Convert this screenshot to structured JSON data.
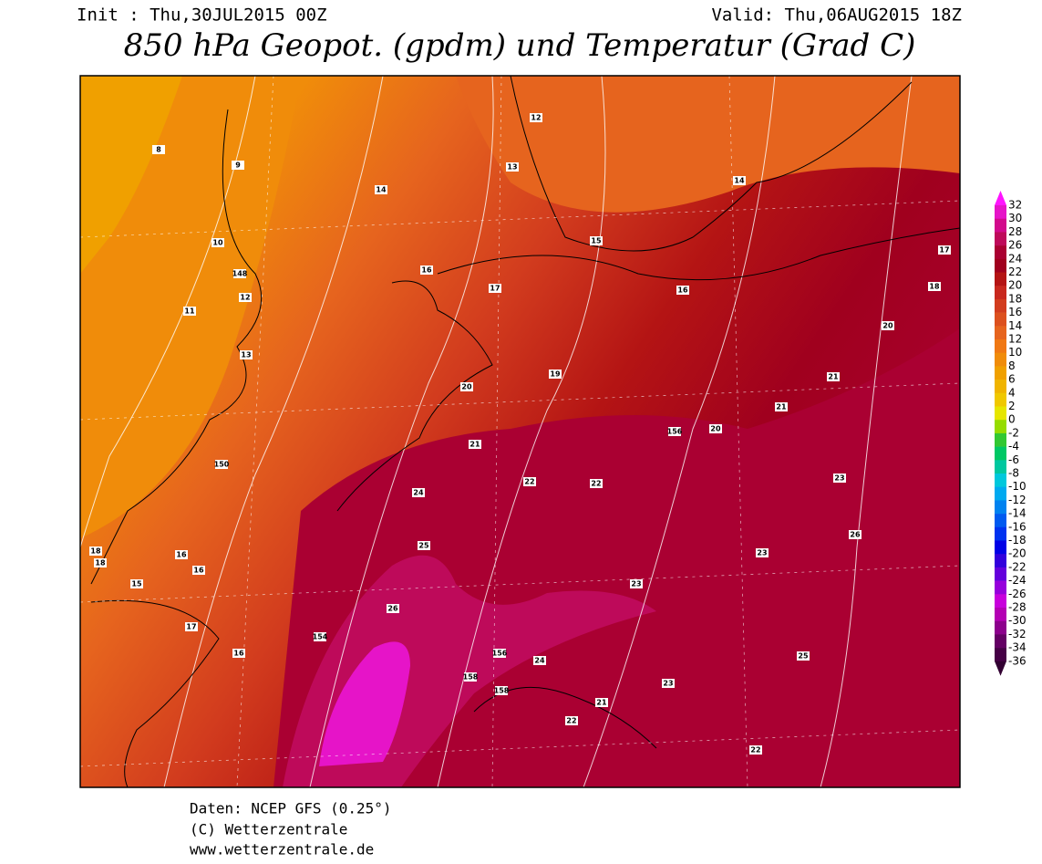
{
  "header": {
    "init": "Init : Thu,30JUL2015 00Z",
    "valid": "Valid: Thu,06AUG2015 18Z",
    "title": "850 hPa Geopot. (gpdm) und Temperatur (Grad C)"
  },
  "colorbar": {
    "labels": [
      32,
      30,
      28,
      26,
      24,
      22,
      20,
      18,
      16,
      14,
      12,
      10,
      8,
      6,
      4,
      2,
      0,
      -2,
      -4,
      -6,
      -8,
      -10,
      -12,
      -14,
      -16,
      -18,
      -20,
      -22,
      -24,
      -26,
      -28,
      -30,
      -32,
      -34,
      -36
    ],
    "colors": [
      "#e614c8",
      "#d20a8c",
      "#be0a5a",
      "#aa0032",
      "#a0001e",
      "#b41414",
      "#c8281e",
      "#d23c1e",
      "#dc501e",
      "#e6641e",
      "#f07814",
      "#f08c0a",
      "#f0a000",
      "#f0b400",
      "#f0c800",
      "#e6e600",
      "#96dc00",
      "#32c832",
      "#00c864",
      "#00c8a0",
      "#00c8dc",
      "#00aaf0",
      "#0082f0",
      "#005af0",
      "#0032f0",
      "#0000e6",
      "#3200dc",
      "#6400dc",
      "#9600dc",
      "#c800dc",
      "#b400b4",
      "#8c008c",
      "#640064",
      "#460046"
    ],
    "top_color": "#ff14ff",
    "bottom_color": "#320032"
  },
  "map": {
    "contour_labels": [
      "8",
      "9",
      "10",
      "11",
      "12",
      "13",
      "148",
      "14",
      "16",
      "17",
      "16",
      "16",
      "18",
      "19",
      "20",
      "21",
      "22",
      "23",
      "24",
      "25",
      "26",
      "150",
      "12",
      "13",
      "14",
      "15",
      "16",
      "17",
      "18",
      "20",
      "21",
      "156",
      "22",
      "23",
      "24",
      "154",
      "156",
      "158",
      "158",
      "21",
      "22",
      "23",
      "25",
      "26",
      "18",
      "15",
      "17",
      "16",
      "20",
      "21",
      "23",
      "22"
    ]
  },
  "footer": {
    "lines": [
      "Daten: NCEP GFS (0.25°)",
      "(C) Wetterzentrale",
      "www.wetterzentrale.de"
    ]
  }
}
